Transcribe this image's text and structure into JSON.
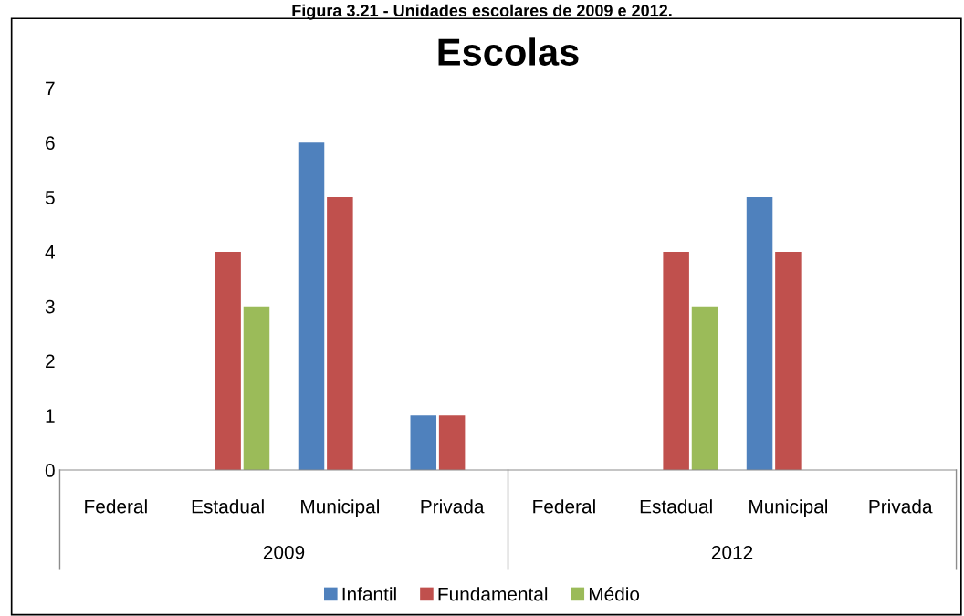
{
  "chart_data": {
    "type": "bar",
    "title": "Escolas",
    "annotations": [
      "Figura 3.21 - Unidades escolares de 2009 e 2012.",
      "2009",
      "2012"
    ],
    "categories": [
      "Federal",
      "Estadual",
      "Municipal",
      "Privada",
      "Federal",
      "Estadual",
      "Municipal",
      "Privada"
    ],
    "series": [
      {
        "name": "Infantil",
        "color": "#4f81bd",
        "values": [
          0,
          0,
          6,
          1,
          0,
          0,
          5,
          0
        ]
      },
      {
        "name": "Fundamental",
        "color": "#c0504d",
        "values": [
          0,
          4,
          5,
          1,
          0,
          4,
          4,
          0
        ]
      },
      {
        "name": "Médio",
        "color": "#9bbb59",
        "values": [
          0,
          3,
          0,
          0,
          0,
          3,
          0,
          0
        ]
      }
    ],
    "ylim": [
      0,
      7
    ],
    "yticks": [
      0,
      1,
      2,
      3,
      4,
      5,
      6,
      7
    ],
    "grid": false,
    "legend": "bottom"
  }
}
